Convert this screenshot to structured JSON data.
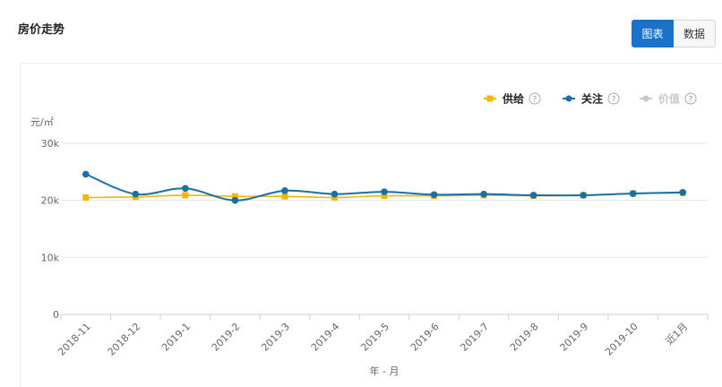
{
  "header": {
    "title": "房价走势"
  },
  "toggle": {
    "chart_label": "图表",
    "data_label": "数据"
  },
  "colors": {
    "supply": "#f2b705",
    "attention": "#1b6fa8",
    "price": "#c8c8c8",
    "accent": "#1a73c8"
  },
  "legend": [
    {
      "name": "供给",
      "color": "#f2b705",
      "marker": "square",
      "active": true
    },
    {
      "name": "关注",
      "color": "#1b6fa8",
      "marker": "circle",
      "active": true
    },
    {
      "name": "价值",
      "color": "#c8c8c8",
      "marker": "circle",
      "active": false
    }
  ],
  "help_icon": "question-circle-icon",
  "chart_data": {
    "type": "line",
    "ylabel": "元/㎡",
    "xlabel": "年 - 月",
    "ylim": [
      0,
      30000
    ],
    "yticks": [
      0,
      10000,
      20000,
      30000
    ],
    "ytick_labels": [
      "0",
      "10k",
      "20k",
      "30k"
    ],
    "categories": [
      "2018-11",
      "2018-12",
      "2019-1",
      "2019-2",
      "2019-3",
      "2019-4",
      "2019-5",
      "2019-6",
      "2019-7",
      "2019-8",
      "2019-9",
      "2019-10",
      "近1月"
    ],
    "series": [
      {
        "name": "供给",
        "values": [
          20500,
          20600,
          20900,
          20700,
          20700,
          20500,
          20800,
          20800,
          20900,
          20800,
          20900,
          21200,
          21300
        ]
      },
      {
        "name": "关注",
        "values": [
          24600,
          21100,
          22100,
          20000,
          21700,
          21100,
          21500,
          21000,
          21100,
          20900,
          20900,
          21200,
          21400
        ]
      }
    ],
    "grid": true,
    "legend_position": "top-right"
  }
}
